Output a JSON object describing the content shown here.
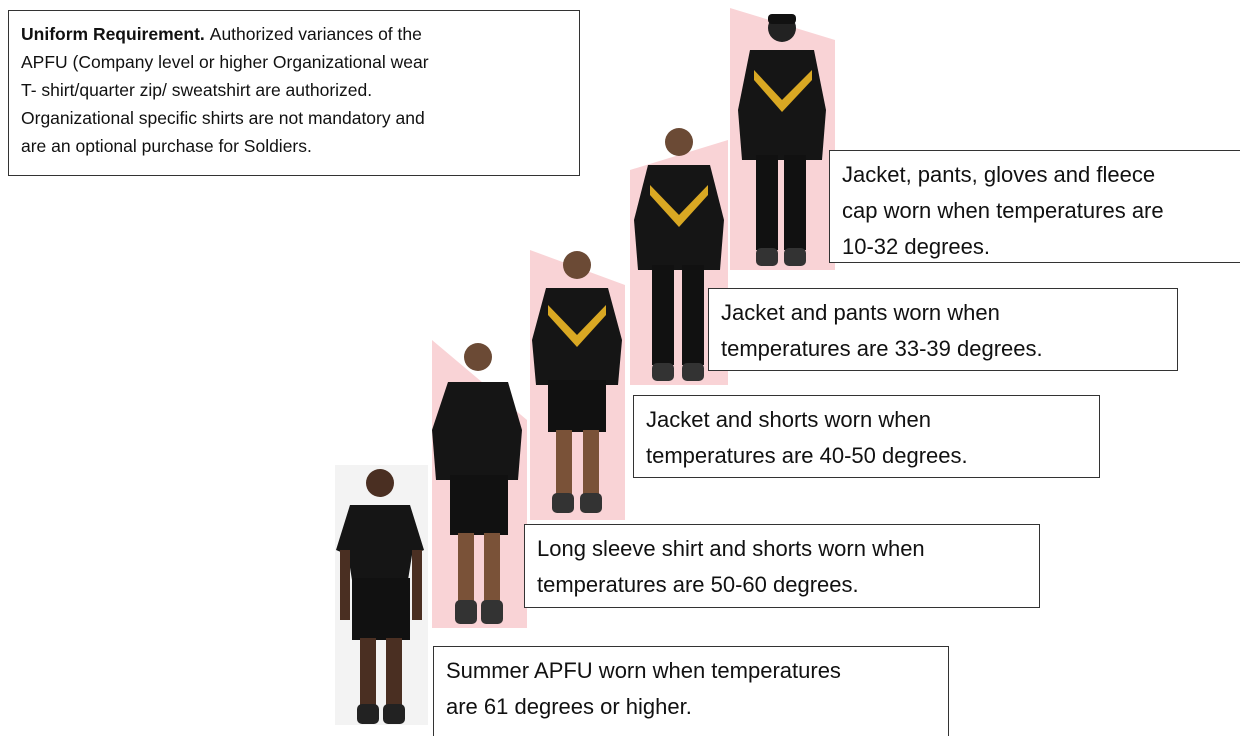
{
  "requirement": {
    "heading": "Uniform Requirement.",
    "lines": [
      "Authorized variances of the",
      "APFU (Company level or higher Organizational wear",
      "T- shirt/quarter zip/ sweatshirt are authorized.",
      "Organizational specific shirts are not mandatory and",
      "are an optional purchase for Soldiers."
    ]
  },
  "captions": [
    {
      "lines": [
        "Jacket, pants, gloves and fleece",
        "cap worn when temperatures are",
        "10-32 degrees."
      ]
    },
    {
      "lines": [
        "Jacket and pants worn when",
        "temperatures are 33-39 degrees."
      ]
    },
    {
      "lines": [
        "Jacket and shorts worn when",
        "temperatures are 40-50 degrees."
      ]
    },
    {
      "lines": [
        "Long sleeve shirt and shorts worn when",
        "temperatures are 50-60 degrees."
      ]
    },
    {
      "lines": [
        "Summer APFU worn when temperatures",
        "are 61 degrees or higher."
      ]
    }
  ]
}
